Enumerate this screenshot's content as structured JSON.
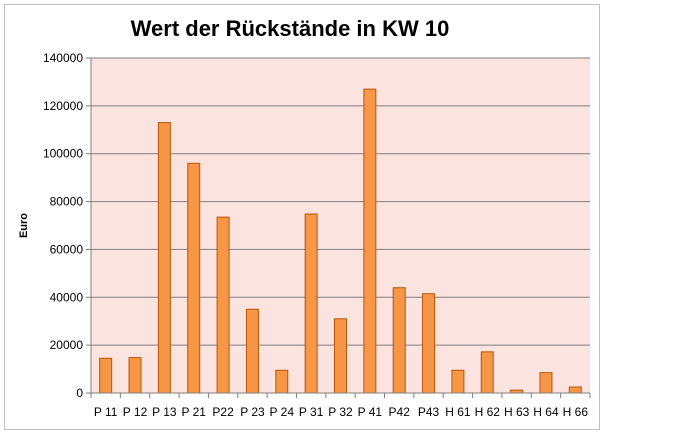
{
  "chart_data": {
    "type": "bar",
    "title": "Wert der Rückstände in KW 10",
    "xlabel": "",
    "ylabel": "Euro",
    "categories": [
      "P 11",
      "P 12",
      "P 13",
      "P 21",
      "P22",
      "P 23",
      "P 24",
      "P 31",
      "P 32",
      "P 41",
      "P42",
      "P43",
      "H 61",
      "H 62",
      "H 63",
      "H 64",
      "H 66"
    ],
    "values": [
      14500,
      14800,
      113000,
      96000,
      73500,
      35000,
      9500,
      74800,
      31000,
      127000,
      44000,
      41500,
      9500,
      17200,
      1200,
      8500,
      2500
    ],
    "ylim": [
      0,
      140000
    ],
    "yticks": [
      0,
      20000,
      40000,
      60000,
      80000,
      100000,
      120000,
      140000
    ],
    "grid": true,
    "legend": "none",
    "colors": {
      "bar_fill": "#f79646",
      "bar_stroke": "#b65708",
      "plot_background": "#fbe4df",
      "gridline": "#7f7f7f",
      "frame_border": "#bfbfbf"
    }
  }
}
